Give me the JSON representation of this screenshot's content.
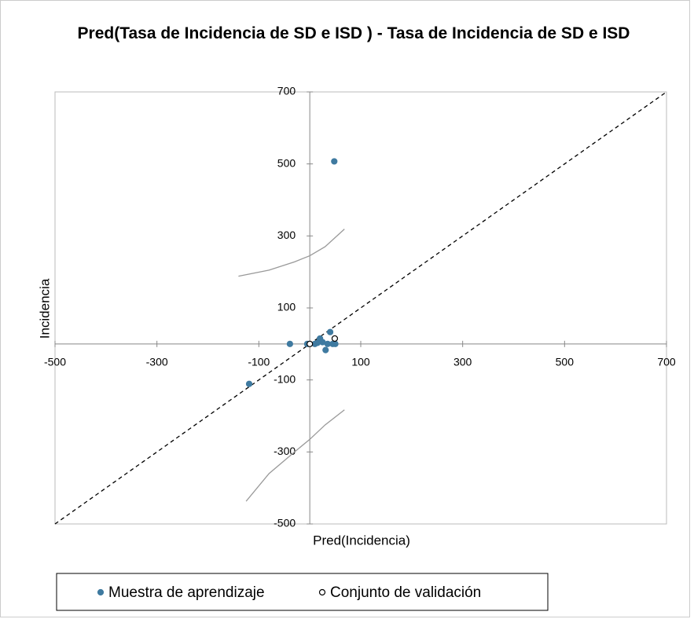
{
  "chart_data": {
    "type": "scatter",
    "title": "Pred(Tasa de Incidencia de SD e ISD ) - Tasa de Incidencia de SD e ISD",
    "xlabel": "Pred(Incidencia)",
    "ylabel": "Incidencia",
    "xlim": [
      -500,
      700
    ],
    "ylim": [
      -500,
      700
    ],
    "xticks": [
      -500,
      -300,
      -100,
      100,
      300,
      500,
      700
    ],
    "yticks": [
      -500,
      -300,
      -100,
      100,
      300,
      500,
      700
    ],
    "series": [
      {
        "name": "Muestra de aprendizaje",
        "color": "#3f7aa0",
        "fill": "#3f7aa0",
        "x": [
          -119,
          -39,
          48,
          40,
          20,
          25,
          31,
          45,
          50,
          10,
          -5,
          15,
          35
        ],
        "y": [
          -111,
          0,
          507,
          33,
          15,
          5,
          -17,
          0,
          0,
          0,
          0,
          3,
          0
        ]
      },
      {
        "name": "Conjunto de validación",
        "color": "#000000",
        "fill": "#ffffff",
        "x": [
          0,
          49
        ],
        "y": [
          0,
          15
        ]
      }
    ],
    "diagonal": {
      "x": [
        -500,
        700
      ],
      "y": [
        -500,
        700
      ],
      "color": "#000000"
    },
    "curves": [
      {
        "x": [
          -140,
          -80,
          -30,
          0,
          30,
          68
        ],
        "y": [
          188,
          205,
          228,
          245,
          270,
          319
        ]
      },
      {
        "x": [
          -125,
          -80,
          -30,
          0,
          30,
          68
        ],
        "y": [
          -437,
          -360,
          -300,
          -265,
          -225,
          -183
        ]
      }
    ],
    "curve_color": "#999999",
    "legend": "bottom"
  }
}
